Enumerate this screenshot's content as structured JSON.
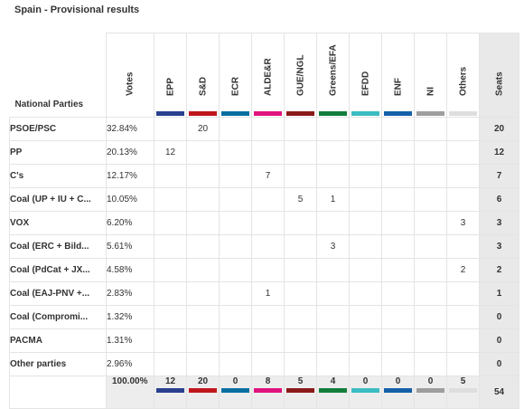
{
  "title": "Spain - Provisional results",
  "header": {
    "parties_label": "National Parties",
    "votes_label": "Votes",
    "seats_label": "Seats"
  },
  "groups": [
    {
      "name": "EPP",
      "color": "#2a3f8f"
    },
    {
      "name": "S&D",
      "color": "#c0161d"
    },
    {
      "name": "ECR",
      "color": "#0a6fa0"
    },
    {
      "name": "ALDE&R",
      "color": "#e0137e"
    },
    {
      "name": "GUE/NGL",
      "color": "#8b1a1a"
    },
    {
      "name": "Greens/EFA",
      "color": "#137d3b"
    },
    {
      "name": "EFDD",
      "color": "#3cbcc3"
    },
    {
      "name": "ENF",
      "color": "#1560a8"
    },
    {
      "name": "NI",
      "color": "#9e9e9e"
    },
    {
      "name": "Others",
      "color": "#dedede"
    }
  ],
  "rows": [
    {
      "party": "PSOE/PSC",
      "votes": "32.84%",
      "cells": [
        "",
        "20",
        "",
        "",
        "",
        "",
        "",
        "",
        "",
        ""
      ],
      "seats": "20"
    },
    {
      "party": "PP",
      "votes": "20.13%",
      "cells": [
        "12",
        "",
        "",
        "",
        "",
        "",
        "",
        "",
        "",
        ""
      ],
      "seats": "12"
    },
    {
      "party": "C's",
      "votes": "12.17%",
      "cells": [
        "",
        "",
        "",
        "7",
        "",
        "",
        "",
        "",
        "",
        ""
      ],
      "seats": "7"
    },
    {
      "party": "Coal (UP + IU + C...",
      "votes": "10.05%",
      "cells": [
        "",
        "",
        "",
        "",
        "5",
        "1",
        "",
        "",
        "",
        ""
      ],
      "seats": "6"
    },
    {
      "party": "VOX",
      "votes": "6.20%",
      "cells": [
        "",
        "",
        "",
        "",
        "",
        "",
        "",
        "",
        "",
        "3"
      ],
      "seats": "3"
    },
    {
      "party": "Coal (ERC + Bild...",
      "votes": "5.61%",
      "cells": [
        "",
        "",
        "",
        "",
        "",
        "3",
        "",
        "",
        "",
        ""
      ],
      "seats": "3"
    },
    {
      "party": "Coal (PdCat + JX...",
      "votes": "4.58%",
      "cells": [
        "",
        "",
        "",
        "",
        "",
        "",
        "",
        "",
        "",
        "2"
      ],
      "seats": "2"
    },
    {
      "party": "Coal (EAJ-PNV +...",
      "votes": "2.83%",
      "cells": [
        "",
        "",
        "",
        "1",
        "",
        "",
        "",
        "",
        "",
        ""
      ],
      "seats": "1"
    },
    {
      "party": "Coal (Compromi...",
      "votes": "1.32%",
      "cells": [
        "",
        "",
        "",
        "",
        "",
        "",
        "",
        "",
        "",
        ""
      ],
      "seats": "0"
    },
    {
      "party": "PACMA",
      "votes": "1.31%",
      "cells": [
        "",
        "",
        "",
        "",
        "",
        "",
        "",
        "",
        "",
        ""
      ],
      "seats": "0"
    },
    {
      "party": "Other parties",
      "votes": "2.96%",
      "cells": [
        "",
        "",
        "",
        "",
        "",
        "",
        "",
        "",
        "",
        ""
      ],
      "seats": "0"
    }
  ],
  "totals": {
    "votes": "100.00%",
    "cells": [
      "12",
      "20",
      "0",
      "8",
      "5",
      "4",
      "0",
      "0",
      "0",
      "5"
    ],
    "seats": "54"
  }
}
